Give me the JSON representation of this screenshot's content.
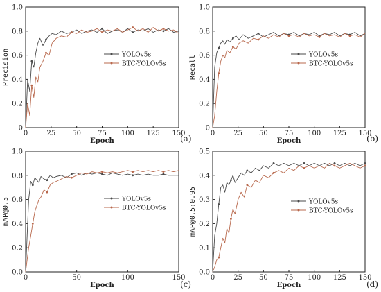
{
  "colors": {
    "yolo": "#4a4a4a",
    "btc": "#b8684c",
    "axis": "#222222"
  },
  "chart_data": [
    {
      "id": "a",
      "type": "line",
      "panel_label": "(a)",
      "xlabel": "Epoch",
      "ylabel": "Precision",
      "xlim": [
        0,
        150
      ],
      "ylim": [
        0,
        1.0
      ],
      "xticks": [
        0,
        25,
        50,
        75,
        100,
        125,
        150
      ],
      "yticks": [
        0,
        0.2,
        0.4,
        0.6,
        0.8,
        1.0
      ],
      "ytick_labels": [
        "0",
        "0.2",
        "0.4",
        "0.6",
        "0.8",
        "1.0"
      ],
      "legend_position": "center-right",
      "series": [
        {
          "name": "YOLOv5s",
          "color": "#4a4a4a",
          "x": [
            0,
            2,
            4,
            6,
            8,
            10,
            12,
            14,
            17,
            20,
            23,
            26,
            30,
            35,
            40,
            45,
            50,
            55,
            60,
            65,
            70,
            75,
            80,
            85,
            90,
            95,
            100,
            105,
            110,
            115,
            120,
            125,
            130,
            135,
            140,
            145,
            150
          ],
          "y": [
            0.0,
            0.4,
            0.3,
            0.55,
            0.5,
            0.62,
            0.7,
            0.74,
            0.68,
            0.73,
            0.76,
            0.78,
            0.77,
            0.8,
            0.78,
            0.79,
            0.81,
            0.78,
            0.8,
            0.81,
            0.79,
            0.82,
            0.78,
            0.8,
            0.81,
            0.79,
            0.82,
            0.79,
            0.81,
            0.8,
            0.82,
            0.79,
            0.81,
            0.8,
            0.82,
            0.79,
            0.8
          ]
        },
        {
          "name": "BTC-YOLOv5s",
          "color": "#b8684c",
          "x": [
            0,
            2,
            4,
            6,
            8,
            10,
            12,
            14,
            17,
            20,
            23,
            26,
            30,
            35,
            40,
            45,
            50,
            55,
            60,
            65,
            70,
            75,
            80,
            85,
            90,
            95,
            100,
            105,
            110,
            115,
            120,
            125,
            130,
            135,
            140,
            145,
            150
          ],
          "y": [
            0.0,
            0.2,
            0.1,
            0.35,
            0.25,
            0.42,
            0.38,
            0.5,
            0.55,
            0.62,
            0.6,
            0.7,
            0.74,
            0.76,
            0.75,
            0.79,
            0.78,
            0.81,
            0.79,
            0.8,
            0.82,
            0.79,
            0.81,
            0.8,
            0.82,
            0.79,
            0.81,
            0.83,
            0.8,
            0.82,
            0.79,
            0.83,
            0.8,
            0.82,
            0.8,
            0.81,
            0.78
          ]
        }
      ]
    },
    {
      "id": "b",
      "type": "line",
      "panel_label": "(b)",
      "xlabel": "Epoch",
      "ylabel": "Recall",
      "xlim": [
        0,
        150
      ],
      "ylim": [
        0,
        1.0
      ],
      "xticks": [
        0,
        25,
        50,
        75,
        100,
        125,
        150
      ],
      "yticks": [
        0,
        0.2,
        0.4,
        0.6,
        0.8,
        1.0
      ],
      "ytick_labels": [
        "0",
        "0.2",
        "0.4",
        "0.6",
        "0.8",
        "1.0"
      ],
      "legend_position": "center-right",
      "series": [
        {
          "name": "YOLOv5s",
          "color": "#4a4a4a",
          "x": [
            0,
            2,
            4,
            6,
            8,
            10,
            12,
            14,
            17,
            20,
            23,
            26,
            30,
            35,
            40,
            45,
            50,
            55,
            60,
            65,
            70,
            75,
            80,
            85,
            90,
            95,
            100,
            105,
            110,
            115,
            120,
            125,
            130,
            135,
            140,
            145,
            150
          ],
          "y": [
            0.0,
            0.5,
            0.62,
            0.66,
            0.7,
            0.72,
            0.69,
            0.73,
            0.71,
            0.74,
            0.76,
            0.73,
            0.77,
            0.74,
            0.76,
            0.78,
            0.75,
            0.77,
            0.79,
            0.76,
            0.78,
            0.77,
            0.79,
            0.76,
            0.78,
            0.77,
            0.79,
            0.76,
            0.78,
            0.77,
            0.79,
            0.76,
            0.78,
            0.77,
            0.79,
            0.76,
            0.78
          ]
        },
        {
          "name": "BTC-YOLOv5s",
          "color": "#b8684c",
          "x": [
            0,
            2,
            4,
            6,
            8,
            10,
            12,
            14,
            17,
            20,
            23,
            26,
            30,
            35,
            40,
            45,
            50,
            55,
            60,
            65,
            70,
            75,
            80,
            85,
            90,
            95,
            100,
            105,
            110,
            115,
            120,
            125,
            130,
            135,
            140,
            145,
            150
          ],
          "y": [
            0.0,
            0.1,
            0.3,
            0.45,
            0.55,
            0.6,
            0.58,
            0.64,
            0.62,
            0.67,
            0.65,
            0.7,
            0.72,
            0.7,
            0.74,
            0.73,
            0.76,
            0.74,
            0.77,
            0.75,
            0.78,
            0.76,
            0.77,
            0.75,
            0.78,
            0.76,
            0.77,
            0.75,
            0.78,
            0.76,
            0.77,
            0.75,
            0.78,
            0.76,
            0.77,
            0.75,
            0.78
          ]
        }
      ]
    },
    {
      "id": "c",
      "type": "line",
      "panel_label": "(c)",
      "xlabel": "Epoch",
      "ylabel": "mAP@0.5",
      "xlim": [
        0,
        150
      ],
      "ylim": [
        0,
        1.0
      ],
      "xticks": [
        0,
        50,
        100,
        150
      ],
      "yticks": [
        0,
        0.2,
        0.4,
        0.6,
        0.8,
        1.0
      ],
      "ytick_labels": [
        "0.0",
        "0.2",
        "0.4",
        "0.6",
        "0.8",
        "1.0"
      ],
      "legend_position": "center-right",
      "series": [
        {
          "name": "YOLOv5s",
          "color": "#4a4a4a",
          "x": [
            0,
            3,
            5,
            7,
            9,
            11,
            13,
            15,
            18,
            21,
            24,
            27,
            30,
            35,
            40,
            45,
            50,
            55,
            60,
            65,
            70,
            75,
            80,
            85,
            90,
            95,
            100,
            105,
            110,
            115,
            120,
            125,
            130,
            135,
            140,
            145,
            150
          ],
          "y": [
            0.0,
            0.6,
            0.75,
            0.72,
            0.78,
            0.76,
            0.74,
            0.79,
            0.77,
            0.76,
            0.8,
            0.78,
            0.79,
            0.8,
            0.78,
            0.81,
            0.82,
            0.8,
            0.82,
            0.81,
            0.82,
            0.81,
            0.8,
            0.82,
            0.81,
            0.8,
            0.81,
            0.8,
            0.81,
            0.8,
            0.81,
            0.8,
            0.8,
            0.81,
            0.8,
            0.8,
            0.8
          ]
        },
        {
          "name": "BTC-YOLOv5s",
          "color": "#b8684c",
          "x": [
            0,
            3,
            5,
            7,
            9,
            11,
            13,
            15,
            18,
            21,
            24,
            27,
            30,
            35,
            40,
            45,
            50,
            55,
            60,
            65,
            70,
            75,
            80,
            85,
            90,
            95,
            100,
            105,
            110,
            115,
            120,
            125,
            130,
            135,
            140,
            145,
            150
          ],
          "y": [
            0.0,
            0.2,
            0.3,
            0.4,
            0.5,
            0.55,
            0.6,
            0.62,
            0.68,
            0.66,
            0.72,
            0.74,
            0.75,
            0.77,
            0.79,
            0.78,
            0.8,
            0.82,
            0.81,
            0.83,
            0.82,
            0.83,
            0.82,
            0.83,
            0.82,
            0.83,
            0.84,
            0.83,
            0.84,
            0.83,
            0.84,
            0.83,
            0.84,
            0.83,
            0.84,
            0.83,
            0.84
          ]
        }
      ]
    },
    {
      "id": "d",
      "type": "line",
      "panel_label": "(d)",
      "xlabel": "Epoch",
      "ylabel": "mAP@0.5:0.95",
      "xlim": [
        0,
        150
      ],
      "ylim": [
        0,
        0.5
      ],
      "xticks": [
        0,
        25,
        50,
        75,
        100,
        125,
        150
      ],
      "yticks": [
        0,
        0.1,
        0.2,
        0.3,
        0.4,
        0.5
      ],
      "ytick_labels": [
        "0.0",
        "0.1",
        "0.2",
        "0.3",
        "0.4",
        "0.5"
      ],
      "legend_position": "center-right",
      "series": [
        {
          "name": "YOLOv5s",
          "color": "#4a4a4a",
          "x": [
            0,
            2,
            4,
            6,
            8,
            10,
            12,
            14,
            16,
            18,
            20,
            22,
            25,
            28,
            31,
            34,
            38,
            42,
            46,
            50,
            55,
            60,
            65,
            70,
            75,
            80,
            85,
            90,
            95,
            100,
            105,
            110,
            115,
            120,
            125,
            130,
            135,
            140,
            145,
            150
          ],
          "y": [
            0.0,
            0.15,
            0.2,
            0.28,
            0.35,
            0.36,
            0.33,
            0.37,
            0.36,
            0.38,
            0.4,
            0.37,
            0.39,
            0.41,
            0.4,
            0.42,
            0.41,
            0.43,
            0.42,
            0.44,
            0.43,
            0.45,
            0.44,
            0.45,
            0.44,
            0.45,
            0.44,
            0.45,
            0.44,
            0.45,
            0.44,
            0.45,
            0.44,
            0.45,
            0.44,
            0.45,
            0.44,
            0.45,
            0.44,
            0.45
          ]
        },
        {
          "name": "BTC-YOLOv5s",
          "color": "#b8684c",
          "x": [
            0,
            2,
            4,
            6,
            8,
            10,
            12,
            14,
            16,
            18,
            20,
            22,
            25,
            28,
            31,
            34,
            38,
            42,
            46,
            50,
            55,
            60,
            65,
            70,
            75,
            80,
            85,
            90,
            95,
            100,
            105,
            110,
            115,
            120,
            125,
            130,
            135,
            140,
            145,
            150
          ],
          "y": [
            0.0,
            0.02,
            0.05,
            0.06,
            0.1,
            0.14,
            0.12,
            0.18,
            0.16,
            0.22,
            0.26,
            0.24,
            0.3,
            0.33,
            0.31,
            0.36,
            0.35,
            0.38,
            0.37,
            0.4,
            0.39,
            0.41,
            0.42,
            0.41,
            0.43,
            0.42,
            0.44,
            0.43,
            0.44,
            0.43,
            0.44,
            0.43,
            0.45,
            0.44,
            0.43,
            0.44,
            0.45,
            0.44,
            0.43,
            0.44
          ]
        }
      ]
    }
  ]
}
